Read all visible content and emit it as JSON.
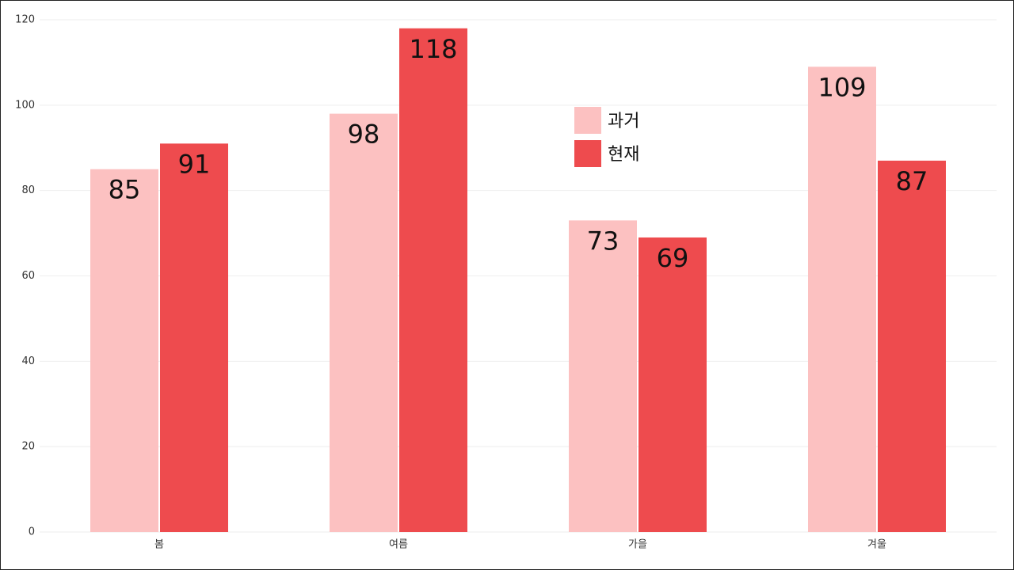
{
  "chart_data": {
    "type": "bar",
    "categories": [
      "봄",
      "여름",
      "가을",
      "겨울"
    ],
    "series": [
      {
        "name": "과거",
        "color": "#fcc1c1",
        "values": [
          85,
          98,
          73,
          109
        ]
      },
      {
        "name": "현재",
        "color": "#ee4b4e",
        "values": [
          91,
          118,
          69,
          87
        ]
      }
    ],
    "ylim": [
      0,
      120
    ],
    "yticks": [
      0,
      20,
      40,
      60,
      80,
      100,
      120
    ],
    "grid": true
  }
}
